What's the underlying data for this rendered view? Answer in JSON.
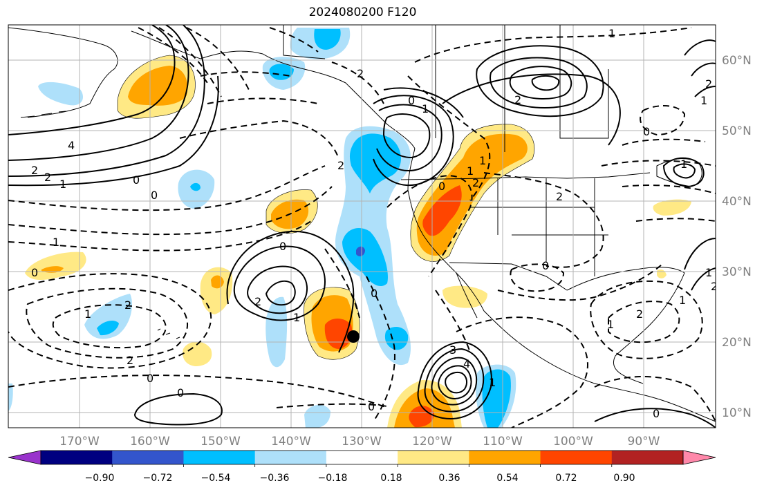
{
  "title": "2024080200 F120",
  "lon_labels": [
    "170°W",
    "160°W",
    "150°W",
    "140°W",
    "130°W",
    "120°W",
    "110°W",
    "100°W",
    "90°W"
  ],
  "lat_labels": [
    "60°N",
    "50°N",
    "40°N",
    "30°N",
    "20°N",
    "10°N"
  ],
  "colorbar": {
    "tick_labels": [
      "−0.90",
      "−0.72",
      "−0.54",
      "−0.36",
      "−0.18",
      "0.18",
      "0.36",
      "0.54",
      "0.72",
      "0.90"
    ],
    "colors": [
      "#9933cc",
      "#000080",
      "#3355cc",
      "#00bfff",
      "#aee0fa",
      "#ffffff",
      "#ffe985",
      "#ffa500",
      "#ff4500",
      "#b22222",
      "#ff88aa"
    ]
  },
  "contour_labels": [
    "1",
    "4",
    "2",
    "2",
    "1",
    "0",
    "0",
    "1",
    "0",
    "0",
    "2",
    "1",
    "2",
    "1",
    "0",
    "0",
    "2",
    "2",
    "1",
    "0",
    "2",
    "2",
    "0",
    "2",
    "1",
    "1",
    "2",
    "0",
    "1",
    "1",
    "2",
    "4",
    "3",
    "0",
    "0",
    "0",
    "1",
    "2",
    "1",
    "0",
    "1",
    "2",
    "1"
  ],
  "marker": "storm-position-dot"
}
